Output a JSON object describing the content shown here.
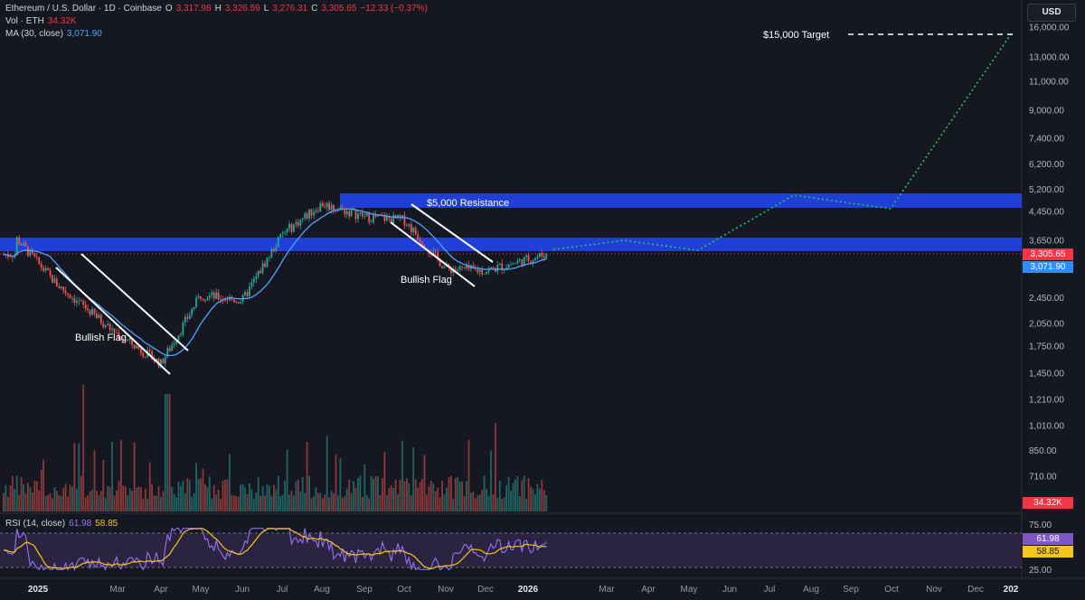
{
  "header": {
    "symbol": "Ethereum / U.S. Dollar · 1D · Coinbase",
    "open_label": "O",
    "open": "3,317.98",
    "high_label": "H",
    "high": "3,326.59",
    "low_label": "L",
    "low": "3,276.31",
    "close_label": "C",
    "close": "3,305.65",
    "change": "−12.33 (−0.37%)",
    "vol_label": "Vol · ETH",
    "vol": "34.32K",
    "ma_label": "MA (30, close)",
    "ma": "3,071.90",
    "rsi_label": "RSI (14, close)",
    "rsi": "61.98",
    "rsi_ma": "58.85"
  },
  "currency_button": "USD",
  "annotations": {
    "target": "$15,000 Target",
    "resistance": "$5,000 Resistance",
    "flag1": "Bullish Flag",
    "flag2": "Bullish Flag"
  },
  "price_badges": {
    "close": "3,305.65",
    "ma": "3,071.90",
    "vol": "34.32K",
    "rsi": "61.98",
    "rsi_ma": "58.85"
  },
  "colors": {
    "background": "#151821",
    "up": "#26a69a",
    "down": "#ef5350",
    "ma_line": "#4fa3ff",
    "resistance_band": "#1f3fd6",
    "projection": "#22c55e",
    "rsi_line": "#8f6ce8",
    "rsi_ma_line": "#f5c518",
    "close_badge": "#f23645",
    "ma_badge": "#2f8cff"
  },
  "chart_data": {
    "type": "candlestick",
    "y_scale": "log",
    "y_axis_ticks": [
      "16,000.00",
      "13,000.00",
      "11,000.00",
      "9,000.00",
      "7,400.00",
      "6,200.00",
      "5,200.00",
      "4,450.00",
      "3,650.00",
      "2,450.00",
      "2,050.00",
      "1,750.00",
      "1,450.00",
      "1,210.00",
      "1,010.00",
      "850.00",
      "710.00"
    ],
    "x_axis_ticks": [
      "2025",
      "Mar",
      "Apr",
      "May",
      "Jun",
      "Jul",
      "Aug",
      "Sep",
      "Oct",
      "Nov",
      "Dec",
      "2026",
      "Mar",
      "Apr",
      "May",
      "Jun",
      "Jul",
      "Aug",
      "Sep",
      "Oct",
      "Nov",
      "Dec",
      "202"
    ],
    "rsi_ticks": [
      "75.00",
      "25.00"
    ],
    "price_path": [
      {
        "date": "2025-01",
        "close": 3700
      },
      {
        "date": "2025-02",
        "close": 2700
      },
      {
        "date": "2025-03",
        "close": 1900
      },
      {
        "date": "2025-04",
        "close": 1550
      },
      {
        "date": "2025-05",
        "close": 2500
      },
      {
        "date": "2025-06",
        "close": 2400
      },
      {
        "date": "2025-07",
        "close": 3800
      },
      {
        "date": "2025-08",
        "close": 4700
      },
      {
        "date": "2025-09",
        "close": 4300
      },
      {
        "date": "2025-10",
        "close": 4200
      },
      {
        "date": "2025-11",
        "close": 3000
      },
      {
        "date": "2025-12",
        "close": 2950
      },
      {
        "date": "2026-01",
        "close": 3305.65
      }
    ],
    "projection": [
      {
        "date": "2026-01",
        "value": 3305.65
      },
      {
        "date": "2026-03",
        "value": 3700
      },
      {
        "date": "2026-05",
        "value": 3350
      },
      {
        "date": "2026-07",
        "value": 5000
      },
      {
        "date": "2026-10",
        "value": 4550
      },
      {
        "date": "2026-12",
        "value": 15000
      }
    ],
    "resistance_zones": [
      [
        3400,
        3700
      ],
      [
        4550,
        5050
      ]
    ],
    "target": 15000
  }
}
